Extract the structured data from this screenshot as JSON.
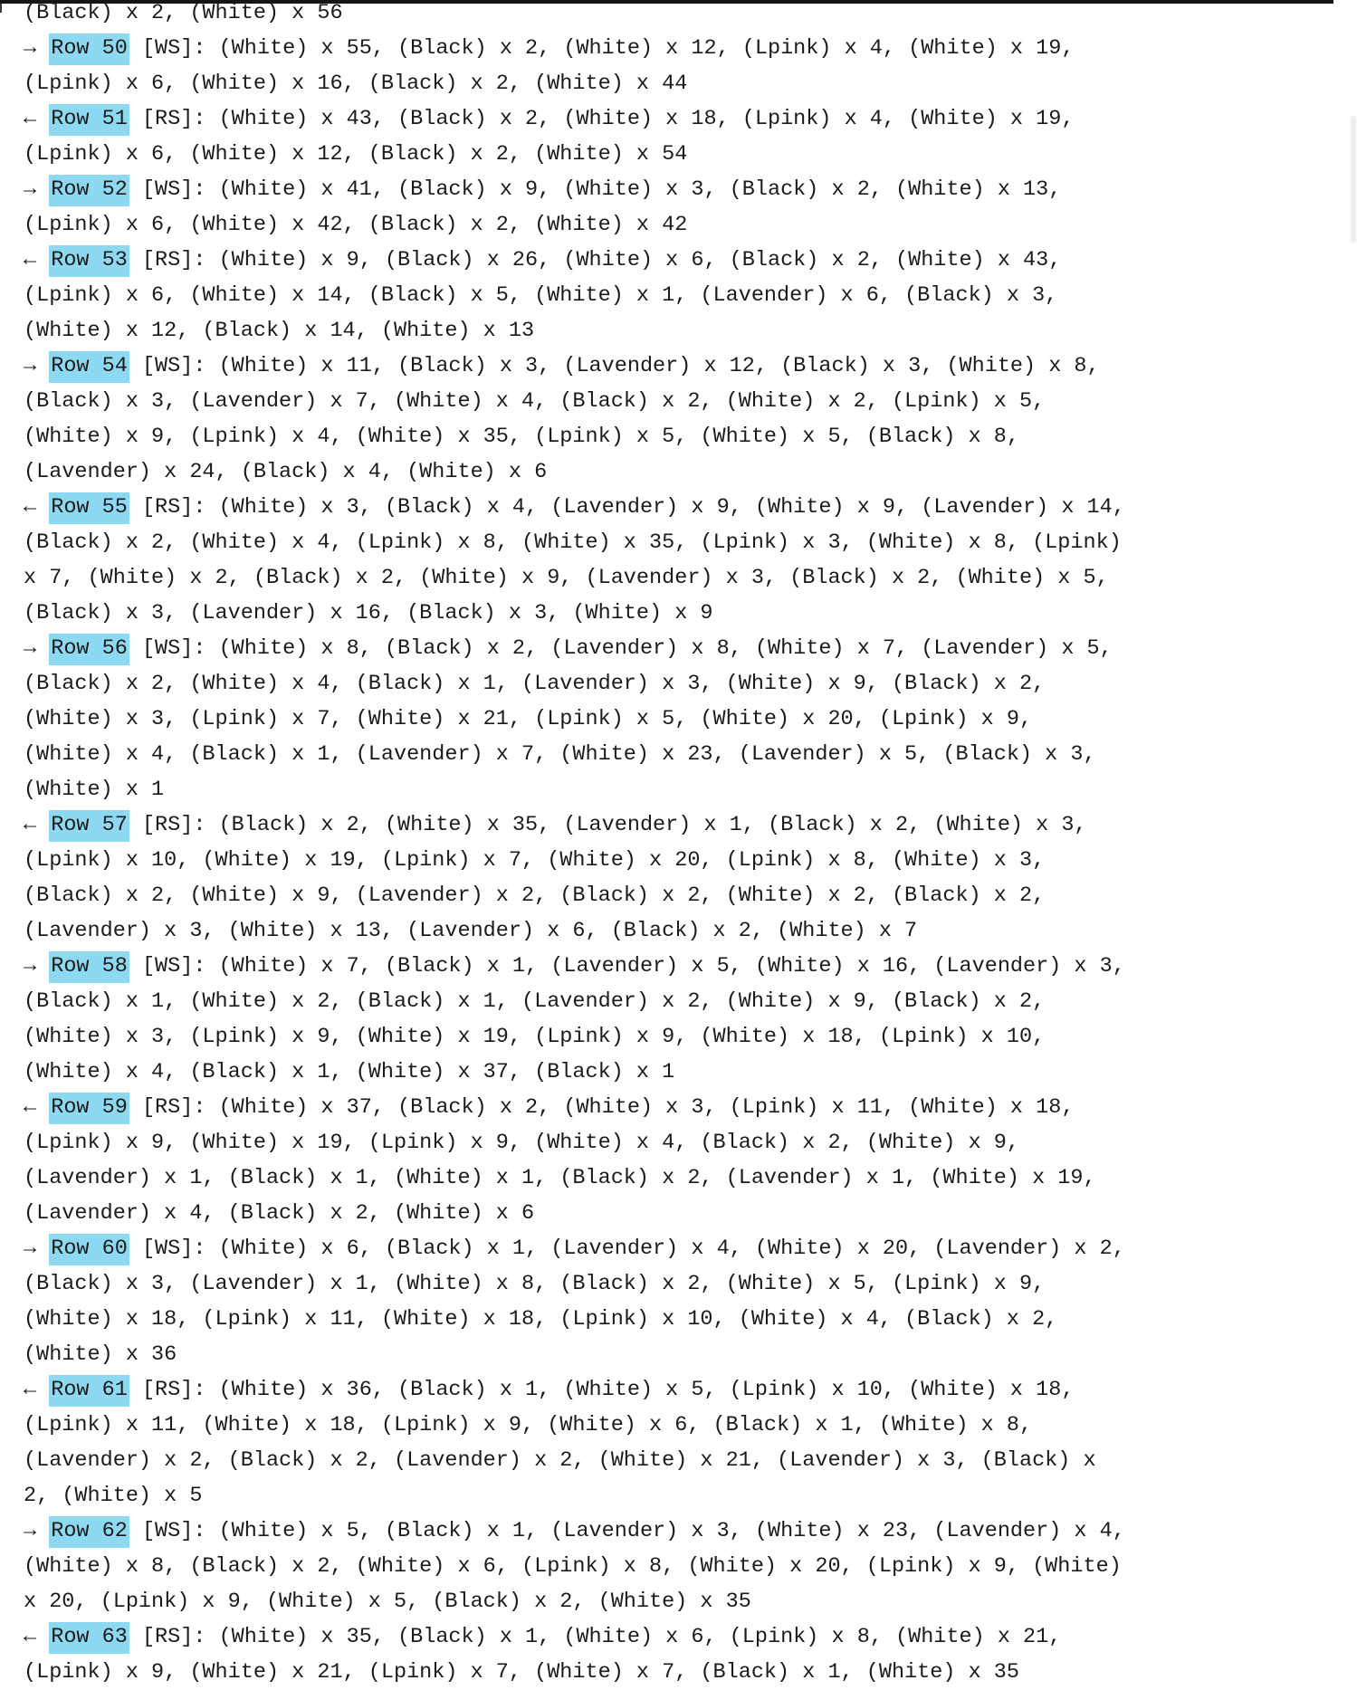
{
  "colors": {
    "highlight": "#8ed9f2",
    "text": "#1b1b1b",
    "top_rule": "#151515"
  },
  "continuation_line": "(Black) x 2, (White) x 56",
  "rows": [
    {
      "arrow": "→",
      "label": "Row 50",
      "side": "[WS]:",
      "runs": "(White) x 55, (Black) x 2, (White) x 12, (Lpink) x 4, (White) x 19, (Lpink) x 6, (White) x 16, (Black) x 2, (White) x 44"
    },
    {
      "arrow": "←",
      "label": "Row 51",
      "side": "[RS]:",
      "runs": "(White) x 43, (Black) x 2, (White) x 18, (Lpink) x 4, (White) x 19, (Lpink) x 6, (White) x 12, (Black) x 2, (White) x 54"
    },
    {
      "arrow": "→",
      "label": "Row 52",
      "side": "[WS]:",
      "runs": "(White) x 41, (Black) x 9, (White) x 3, (Black) x 2, (White) x 13, (Lpink) x 6, (White) x 42, (Black) x 2, (White) x 42"
    },
    {
      "arrow": "←",
      "label": "Row 53",
      "side": "[RS]:",
      "runs": "(White) x 9, (Black) x 26, (White) x 6, (Black) x 2, (White) x 43, (Lpink) x 6, (White) x 14, (Black) x 5, (White) x 1, (Lavender) x 6, (Black) x 3, (White) x 12, (Black) x 14, (White) x 13"
    },
    {
      "arrow": "→",
      "label": "Row 54",
      "side": "[WS]:",
      "runs": "(White) x 11, (Black) x 3, (Lavender) x 12, (Black) x 3, (White) x 8, (Black) x 3, (Lavender) x 7, (White) x 4, (Black) x 2, (White) x 2, (Lpink) x 5, (White) x 9, (Lpink) x 4, (White) x 35, (Lpink) x 5, (White) x 5, (Black) x 8, (Lavender) x 24, (Black) x 4, (White) x 6"
    },
    {
      "arrow": "←",
      "label": "Row 55",
      "side": "[RS]:",
      "runs": "(White) x 3, (Black) x 4, (Lavender) x 9, (White) x 9, (Lavender) x 14, (Black) x 2, (White) x 4, (Lpink) x 8, (White) x 35, (Lpink) x 3, (White) x 8, (Lpink) x 7, (White) x 2, (Black) x 2, (White) x 9, (Lavender) x 3, (Black) x 2, (White) x 5, (Black) x 3, (Lavender) x 16, (Black) x 3, (White) x 9"
    },
    {
      "arrow": "→",
      "label": "Row 56",
      "side": "[WS]:",
      "runs": "(White) x 8, (Black) x 2, (Lavender) x 8, (White) x 7, (Lavender) x 5, (Black) x 2, (White) x 4, (Black) x 1, (Lavender) x 3, (White) x 9, (Black) x 2, (White) x 3, (Lpink) x 7, (White) x 21, (Lpink) x 5, (White) x 20, (Lpink) x 9, (White) x 4, (Black) x 1, (Lavender) x 7, (White) x 23, (Lavender) x 5, (Black) x 3, (White) x 1"
    },
    {
      "arrow": "←",
      "label": "Row 57",
      "side": "[RS]:",
      "runs": "(Black) x 2, (White) x 35, (Lavender) x 1, (Black) x 2, (White) x 3, (Lpink) x 10, (White) x 19, (Lpink) x 7, (White) x 20, (Lpink) x 8, (White) x 3, (Black) x 2, (White) x 9, (Lavender) x 2, (Black) x 2, (White) x 2, (Black) x 2, (Lavender) x 3, (White) x 13, (Lavender) x 6, (Black) x 2, (White) x 7"
    },
    {
      "arrow": "→",
      "label": "Row 58",
      "side": "[WS]:",
      "runs": "(White) x 7, (Black) x 1, (Lavender) x 5, (White) x 16, (Lavender) x 3, (Black) x 1, (White) x 2, (Black) x 1, (Lavender) x 2, (White) x 9, (Black) x 2, (White) x 3, (Lpink) x 9, (White) x 19, (Lpink) x 9, (White) x 18, (Lpink) x 10, (White) x 4, (Black) x 1, (White) x 37, (Black) x 1"
    },
    {
      "arrow": "←",
      "label": "Row 59",
      "side": "[RS]:",
      "runs": "(White) x 37, (Black) x 2, (White) x 3, (Lpink) x 11, (White) x 18, (Lpink) x 9, (White) x 19, (Lpink) x 9, (White) x 4, (Black) x 2, (White) x 9, (Lavender) x 1, (Black) x 1, (White) x 1, (Black) x 2, (Lavender) x 1, (White) x 19, (Lavender) x 4, (Black) x 2, (White) x 6"
    },
    {
      "arrow": "→",
      "label": "Row 60",
      "side": "[WS]:",
      "runs": "(White) x 6, (Black) x 1, (Lavender) x 4, (White) x 20, (Lavender) x 2, (Black) x 3, (Lavender) x 1, (White) x 8, (Black) x 2, (White) x 5, (Lpink) x 9, (White) x 18, (Lpink) x 11, (White) x 18, (Lpink) x 10, (White) x 4, (Black) x 2, (White) x 36"
    },
    {
      "arrow": "←",
      "label": "Row 61",
      "side": "[RS]:",
      "runs": "(White) x 36, (Black) x 1, (White) x 5, (Lpink) x 10, (White) x 18, (Lpink) x 11, (White) x 18, (Lpink) x 9, (White) x 6, (Black) x 1, (White) x 8, (Lavender) x 2, (Black) x 2, (Lavender) x 2, (White) x 21, (Lavender) x 3, (Black) x 2, (White) x 5"
    },
    {
      "arrow": "→",
      "label": "Row 62",
      "side": "[WS]:",
      "runs": "(White) x 5, (Black) x 1, (Lavender) x 3, (White) x 23, (Lavender) x 4, (White) x 8, (Black) x 2, (White) x 6, (Lpink) x 8, (White) x 20, (Lpink) x 9, (White) x 20, (Lpink) x 9, (White) x 5, (Black) x 2, (White) x 35"
    },
    {
      "arrow": "←",
      "label": "Row 63",
      "side": "[RS]:",
      "runs": "(White) x 35, (Black) x 1, (White) x 6, (Lpink) x 8, (White) x 21, (Lpink) x 9, (White) x 21, (Lpink) x 7, (White) x 7, (Black) x 1, (White) x 35"
    }
  ]
}
